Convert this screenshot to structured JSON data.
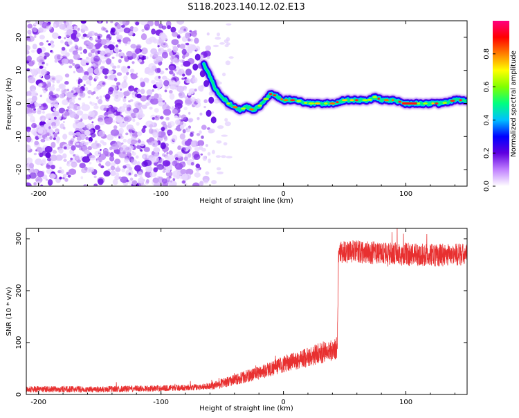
{
  "title": "S118.2023.140.12.02.E13",
  "chart_data": [
    {
      "type": "heatmap",
      "xlabel": "Height of straight line (km)",
      "ylabel": "Frequency (Hz)",
      "xlim": [
        -210,
        150
      ],
      "ylim": [
        -25,
        25
      ],
      "xticks": [
        -200,
        -100,
        0,
        100
      ],
      "yticks": [
        20,
        10,
        0,
        -10,
        -20
      ],
      "colorbar": {
        "label": "Normalized spectral amplitude",
        "range": [
          0,
          1
        ],
        "ticks": [
          "0.0",
          "0.2",
          "0.4",
          "0.6",
          "0.8"
        ],
        "colors": [
          "#ffffff",
          "#c080ff",
          "#6000e0",
          "#0000ff",
          "#00c0ff",
          "#00ff80",
          "#80ff00",
          "#ffff00",
          "#ff8000",
          "#ff0000",
          "#ff0080"
        ]
      },
      "noise_region_x": [
        -210,
        -65
      ],
      "ridge": {
        "x": [
          -65,
          -60,
          -55,
          -50,
          -45,
          -40,
          -35,
          -30,
          -25,
          -20,
          -15,
          -10,
          -5,
          0,
          10,
          20,
          30,
          40,
          50,
          60,
          70,
          75,
          80,
          90,
          100,
          110,
          120,
          130,
          140,
          150
        ],
        "y": [
          12,
          8,
          4,
          2,
          0,
          -1,
          -2,
          -1,
          -2,
          -1,
          1,
          3,
          2,
          1,
          1,
          0,
          0,
          0,
          1,
          1,
          1,
          2,
          1,
          1,
          0,
          0,
          0,
          0,
          1,
          1
        ]
      }
    },
    {
      "type": "line",
      "xlabel": "Height of straight line (km)",
      "ylabel": "SNR (10 * v/v)",
      "xlim": [
        -210,
        150
      ],
      "ylim": [
        0,
        320
      ],
      "xticks": [
        -200,
        -100,
        0,
        100
      ],
      "yticks": [
        300,
        200,
        100,
        0
      ],
      "color": "#e83030",
      "series": {
        "x": [
          -210,
          -150,
          -100,
          -70,
          -55,
          -50,
          -45,
          -40,
          -30,
          -20,
          -10,
          0,
          10,
          20,
          30,
          40,
          44,
          45,
          46,
          60,
          80,
          100,
          120,
          140,
          150
        ],
        "y": [
          10,
          10,
          12,
          14,
          18,
          22,
          25,
          28,
          35,
          42,
          50,
          58,
          65,
          72,
          80,
          85,
          90,
          270,
          275,
          275,
          272,
          270,
          268,
          270,
          268
        ]
      }
    }
  ]
}
